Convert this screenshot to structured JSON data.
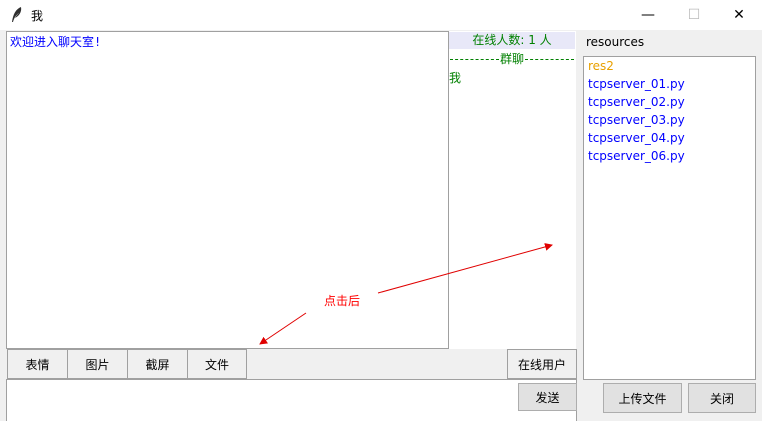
{
  "window": {
    "title": "我",
    "minimize_symbol": "—",
    "maximize_symbol": "☐",
    "close_symbol": "✕"
  },
  "chat": {
    "welcome_text": "欢迎进入聊天室!"
  },
  "online": {
    "header": "在线人数: 1 人",
    "group_label": "群聊",
    "users": [
      "我"
    ]
  },
  "toolbar": {
    "emoji": "表情",
    "image": "图片",
    "screenshot": "截屏",
    "file": "文件",
    "online_users": "在线用户"
  },
  "input": {
    "send": "发送"
  },
  "resources": {
    "title": "resources",
    "items": [
      {
        "name": "res2",
        "color": "#e8a000"
      },
      {
        "name": "tcpserver_01.py",
        "color": "#0000ff"
      },
      {
        "name": "tcpserver_02.py",
        "color": "#0000ff"
      },
      {
        "name": "tcpserver_03.py",
        "color": "#0000ff"
      },
      {
        "name": "tcpserver_04.py",
        "color": "#0000ff"
      },
      {
        "name": "tcpserver_06.py",
        "color": "#0000ff"
      }
    ],
    "upload": "上传文件",
    "close": "关闭"
  },
  "annotation": {
    "text": "点击后",
    "color": "#ff0000"
  }
}
